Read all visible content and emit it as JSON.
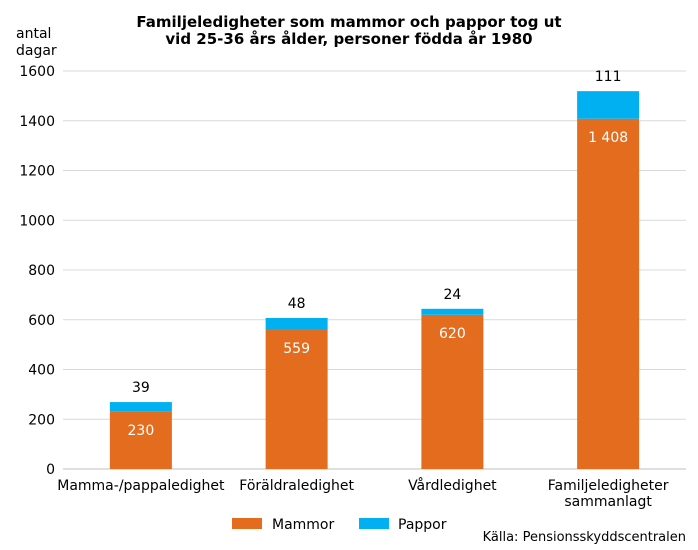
{
  "chart_data": {
    "type": "bar",
    "stacked": true,
    "title": [
      "Familjeledigheter som mammor och pappor tog ut",
      "vid 25-36 års ålder, personer födda år 1980"
    ],
    "ylabel": [
      "antal",
      "dagar"
    ],
    "xlabel": "",
    "ylim": [
      0,
      1600
    ],
    "yticks": [
      0,
      200,
      400,
      600,
      800,
      1000,
      1200,
      1400,
      1600
    ],
    "grid": true,
    "legend_position": "bottom",
    "categories": [
      [
        "Mamma-/pappaledighet"
      ],
      [
        "Föräldraledighet"
      ],
      [
        "Vårdledighet"
      ],
      [
        "Familjeledigheter",
        "sammanlagt"
      ]
    ],
    "series": [
      {
        "name": "Mammor",
        "color": "#e36c1f",
        "values": [
          230,
          559,
          620,
          1408
        ],
        "labels": [
          "230",
          "559",
          "620",
          "1 408"
        ]
      },
      {
        "name": "Pappor",
        "color": "#00b0f0",
        "values": [
          39,
          48,
          24,
          111
        ],
        "labels": [
          "39",
          "48",
          "24",
          "111"
        ]
      }
    ],
    "source": "Källa: Pensionsskyddscentralen"
  }
}
